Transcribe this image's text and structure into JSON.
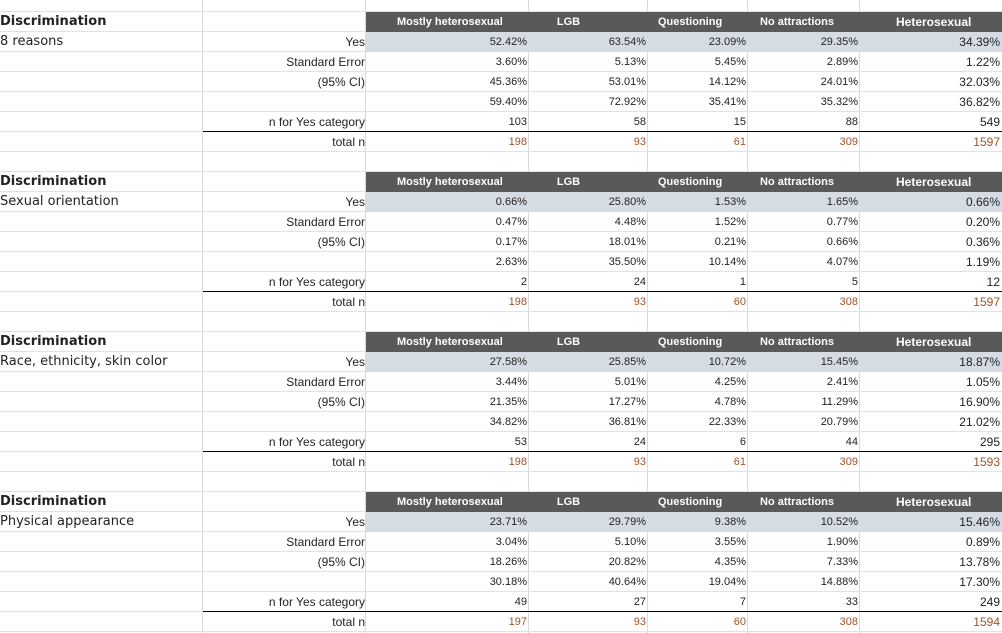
{
  "columns": [
    "Mostly heterosexual",
    "LGB",
    "Questioning",
    "No attractions",
    "Heterosexual"
  ],
  "row_labels": {
    "yes": "Yes",
    "se": "Standard Error",
    "ci": "(95% CI)",
    "n_yes": "n for Yes category",
    "total": "total n"
  },
  "blocks": [
    {
      "title": "Discrimination",
      "subtitle": "8 reasons",
      "rows": {
        "yes": [
          "52.42%",
          "63.54%",
          "23.09%",
          "29.35%",
          "34.39%"
        ],
        "se": [
          "3.60%",
          "5.13%",
          "5.45%",
          "2.89%",
          "1.22%"
        ],
        "ci_lo": [
          "45.36%",
          "53.01%",
          "14.12%",
          "24.01%",
          "32.03%"
        ],
        "ci_hi": [
          "59.40%",
          "72.92%",
          "35.41%",
          "35.32%",
          "36.82%"
        ],
        "n_yes": [
          "103",
          "58",
          "15",
          "88",
          "549"
        ],
        "total": [
          "198",
          "93",
          "61",
          "309",
          "1597"
        ]
      }
    },
    {
      "title": "Discrimination",
      "subtitle": "Sexual orientation",
      "rows": {
        "yes": [
          "0.66%",
          "25.80%",
          "1.53%",
          "1.65%",
          "0.66%"
        ],
        "se": [
          "0.47%",
          "4.48%",
          "1.52%",
          "0.77%",
          "0.20%"
        ],
        "ci_lo": [
          "0.17%",
          "18.01%",
          "0.21%",
          "0.66%",
          "0.36%"
        ],
        "ci_hi": [
          "2.63%",
          "35.50%",
          "10.14%",
          "4.07%",
          "1.19%"
        ],
        "n_yes": [
          "2",
          "24",
          "1",
          "5",
          "12"
        ],
        "total": [
          "198",
          "93",
          "60",
          "308",
          "1597"
        ]
      }
    },
    {
      "title": "Discrimination",
      "subtitle": "Race, ethnicity, skin color",
      "rows": {
        "yes": [
          "27.58%",
          "25.85%",
          "10.72%",
          "15.45%",
          "18.87%"
        ],
        "se": [
          "3.44%",
          "5.01%",
          "4.25%",
          "2.41%",
          "1.05%"
        ],
        "ci_lo": [
          "21.35%",
          "17.27%",
          "4.78%",
          "11.29%",
          "16.90%"
        ],
        "ci_hi": [
          "34.82%",
          "36.81%",
          "22.33%",
          "20.79%",
          "21.02%"
        ],
        "n_yes": [
          "53",
          "24",
          "6",
          "44",
          "295"
        ],
        "total": [
          "198",
          "93",
          "61",
          "309",
          "1593"
        ]
      }
    },
    {
      "title": "Discrimination",
      "subtitle": "Physical appearance",
      "rows": {
        "yes": [
          "23.71%",
          "29.79%",
          "9.38%",
          "10.52%",
          "15.46%"
        ],
        "se": [
          "3.04%",
          "5.10%",
          "3.55%",
          "1.90%",
          "0.89%"
        ],
        "ci_lo": [
          "18.26%",
          "20.82%",
          "4.35%",
          "7.33%",
          "13.78%"
        ],
        "ci_hi": [
          "30.18%",
          "40.64%",
          "19.04%",
          "14.88%",
          "17.30%"
        ],
        "n_yes": [
          "49",
          "27",
          "7",
          "33",
          "249"
        ],
        "total": [
          "197",
          "93",
          "60",
          "308",
          "1594"
        ]
      }
    }
  ],
  "colors": {
    "header_bg": "#595959",
    "yes_row_bg": "#d6dce4",
    "total_text": "#a0522d"
  }
}
